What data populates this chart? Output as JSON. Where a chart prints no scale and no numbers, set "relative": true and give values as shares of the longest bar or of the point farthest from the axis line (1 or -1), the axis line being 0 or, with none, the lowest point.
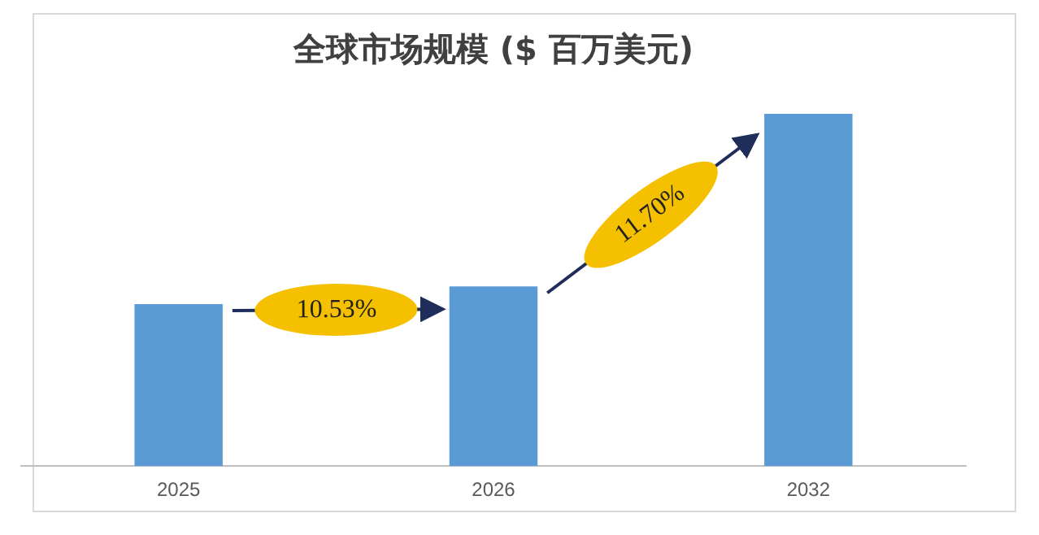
{
  "chart_data": {
    "type": "bar",
    "title": "全球市场规模 ($ 百万美元)",
    "categories": [
      "2025",
      "2026",
      "2032"
    ],
    "values": [
      0.46,
      0.51,
      1
    ],
    "color": "#5b9bd5",
    "relative": true,
    "legend": false,
    "annotations": [
      "10.53%",
      "11.70%"
    ]
  }
}
